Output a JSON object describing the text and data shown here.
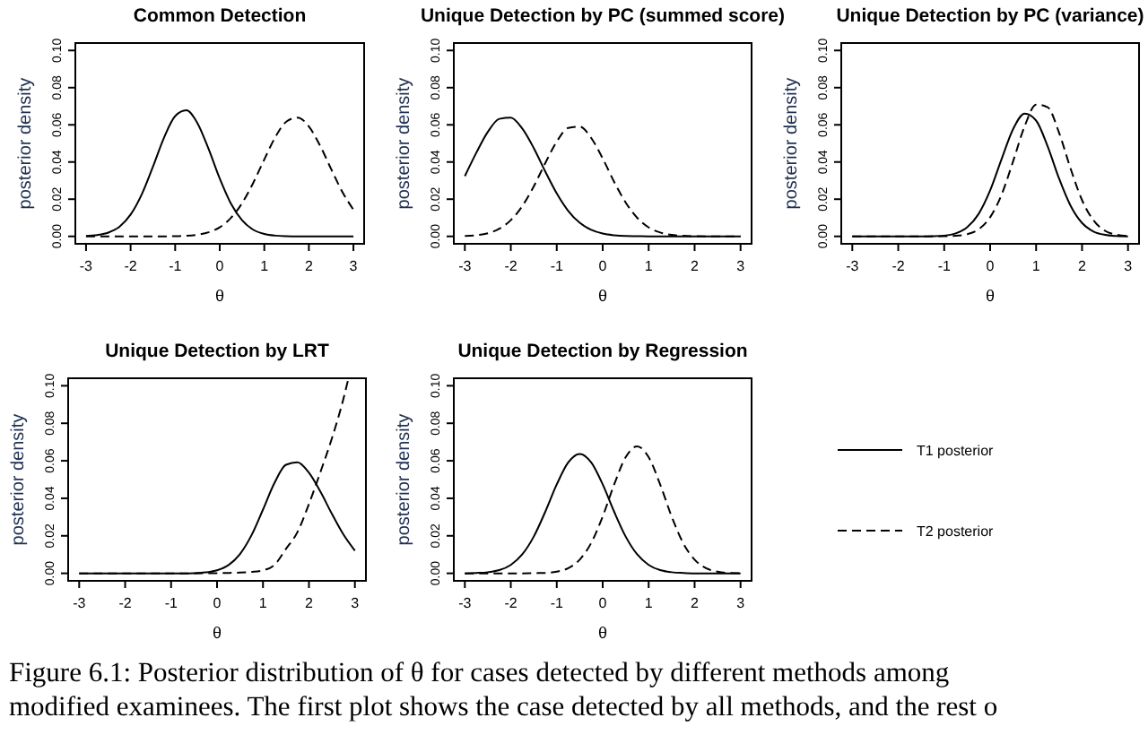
{
  "chart_data": [
    {
      "type": "line",
      "title": "Common Detection",
      "xlabel": "θ",
      "ylabel": "posterior density",
      "xlim": [
        -3.24,
        3.24
      ],
      "xticks": [
        -3,
        -2,
        -1,
        0,
        1,
        2,
        3
      ],
      "ylim": [
        -0.004,
        0.104
      ],
      "yticks": [
        {
          "value": 0,
          "label": "0.00"
        },
        {
          "value": 0.02,
          "label": "0.02"
        },
        {
          "value": 0.04,
          "label": "0.04"
        },
        {
          "value": 0.06,
          "label": "0.06"
        },
        {
          "value": 0.08,
          "label": "0.08"
        },
        {
          "value": 0.1,
          "label": "0.10"
        }
      ],
      "x": [
        -3,
        -2.75,
        -2.5,
        -2.25,
        -2,
        -1.75,
        -1.5,
        -1.25,
        -1,
        -0.75,
        -0.5,
        -0.25,
        0,
        0.25,
        0.5,
        0.75,
        1,
        1.25,
        1.5,
        1.75,
        2,
        2.25,
        2.5,
        2.75,
        3
      ],
      "series": [
        {
          "color": "#000000",
          "line_style": "solid",
          "values": [
            0.0002,
            0.0007,
            0.002,
            0.0052,
            0.0117,
            0.0226,
            0.0374,
            0.0531,
            0.0647,
            0.0678,
            0.0609,
            0.047,
            0.0311,
            0.0177,
            0.0087,
            0.0036,
            0.0013,
            0.0004,
            0.0001,
            0,
            0,
            0,
            0,
            0,
            0
          ]
        },
        {
          "color": "#000000",
          "line_style": "dashed",
          "values": [
            0,
            0,
            0,
            0,
            0,
            0,
            0,
            0,
            0.0001,
            0.0003,
            0.0009,
            0.0022,
            0.0049,
            0.0099,
            0.0178,
            0.0287,
            0.0414,
            0.0535,
            0.0618,
            0.0639,
            0.0591,
            0.0489,
            0.0362,
            0.024,
            0.0143
          ]
        }
      ]
    },
    {
      "type": "line",
      "title": "Unique Detection by PC (summed score)",
      "xlabel": "θ",
      "ylabel": "posterior density",
      "xlim": [
        -3.24,
        3.24
      ],
      "xticks": [
        -3,
        -2,
        -1,
        0,
        1,
        2,
        3
      ],
      "ylim": [
        -0.004,
        0.104
      ],
      "yticks": [
        {
          "value": 0,
          "label": "0.00"
        },
        {
          "value": 0.02,
          "label": "0.02"
        },
        {
          "value": 0.04,
          "label": "0.04"
        },
        {
          "value": 0.06,
          "label": "0.06"
        },
        {
          "value": 0.08,
          "label": "0.08"
        },
        {
          "value": 0.1,
          "label": "0.10"
        }
      ],
      "x": [
        -3,
        -2.75,
        -2.5,
        -2.25,
        -2,
        -1.75,
        -1.5,
        -1.25,
        -1,
        -0.75,
        -0.5,
        -0.25,
        0,
        0.25,
        0.5,
        0.75,
        1,
        1.25,
        1.5,
        1.75,
        2,
        2.25,
        2.5,
        2.75,
        3
      ],
      "series": [
        {
          "color": "#000000",
          "line_style": "solid",
          "values": [
            0.0324,
            0.045,
            0.0562,
            0.0632,
            0.0639,
            0.058,
            0.0475,
            0.0349,
            0.0231,
            0.0137,
            0.0073,
            0.0035,
            0.0015,
            0.0006,
            0.0002,
            0.0001,
            0,
            0,
            0,
            0,
            0,
            0,
            0,
            0,
            0
          ]
        },
        {
          "color": "#000000",
          "line_style": "dashed",
          "values": [
            0.0002,
            0.0006,
            0.0017,
            0.0041,
            0.0087,
            0.0163,
            0.0269,
            0.0394,
            0.051,
            0.0583,
            0.059,
            0.0529,
            0.0419,
            0.0293,
            0.0182,
            0.01,
            0.0048,
            0.0021,
            0.0008,
            0.0003,
            0.0001,
            0,
            0,
            0,
            0
          ]
        }
      ]
    },
    {
      "type": "line",
      "title": "Unique Detection by PC (variance)",
      "xlabel": "θ",
      "ylabel": "posterior density",
      "xlim": [
        -3.24,
        3.24
      ],
      "xticks": [
        -3,
        -2,
        -1,
        0,
        1,
        2,
        3
      ],
      "ylim": [
        -0.004,
        0.104
      ],
      "yticks": [
        {
          "value": 0,
          "label": "0.00"
        },
        {
          "value": 0.02,
          "label": "0.02"
        },
        {
          "value": 0.04,
          "label": "0.04"
        },
        {
          "value": 0.06,
          "label": "0.06"
        },
        {
          "value": 0.08,
          "label": "0.08"
        },
        {
          "value": 0.1,
          "label": "0.10"
        }
      ],
      "x": [
        -3,
        -2.75,
        -2.5,
        -2.25,
        -2,
        -1.75,
        -1.5,
        -1.25,
        -1,
        -0.75,
        -0.5,
        -0.25,
        0,
        0.25,
        0.5,
        0.75,
        1,
        1.25,
        1.5,
        1.75,
        2,
        2.25,
        2.5,
        2.75,
        3
      ],
      "series": [
        {
          "color": "#000000",
          "line_style": "solid",
          "values": [
            0,
            0,
            0,
            0,
            0,
            0,
            0,
            0.0001,
            0.0004,
            0.0016,
            0.0049,
            0.0121,
            0.0247,
            0.0416,
            0.0577,
            0.066,
            0.0623,
            0.0485,
            0.0311,
            0.0165,
            0.0072,
            0.0026,
            0.0008,
            0.0002,
            0
          ]
        },
        {
          "color": "#000000",
          "line_style": "dashed",
          "values": [
            0,
            0,
            0,
            0,
            0,
            0,
            0,
            0,
            0.0001,
            0.0003,
            0.0012,
            0.0038,
            0.0103,
            0.0225,
            0.0404,
            0.0592,
            0.0709,
            0.0695,
            0.0557,
            0.0365,
            0.0195,
            0.0086,
            0.003,
            0.0009,
            0.0002
          ]
        }
      ]
    },
    {
      "type": "line",
      "title": "Unique Detection by LRT",
      "xlabel": "θ",
      "ylabel": "posterior density",
      "xlim": [
        -3.24,
        3.24
      ],
      "xticks": [
        -3,
        -2,
        -1,
        0,
        1,
        2,
        3
      ],
      "ylim": [
        -0.004,
        0.104
      ],
      "yticks": [
        {
          "value": 0,
          "label": "0.00"
        },
        {
          "value": 0.02,
          "label": "0.02"
        },
        {
          "value": 0.04,
          "label": "0.04"
        },
        {
          "value": 0.06,
          "label": "0.06"
        },
        {
          "value": 0.08,
          "label": "0.08"
        },
        {
          "value": 0.1,
          "label": "0.10"
        }
      ],
      "x": [
        -3,
        -2.75,
        -2.5,
        -2.25,
        -2,
        -1.75,
        -1.5,
        -1.25,
        -1,
        -0.75,
        -0.5,
        -0.25,
        0,
        0.25,
        0.5,
        0.75,
        1,
        1.25,
        1.5,
        1.75,
        2,
        2.25,
        2.5,
        2.75,
        3
      ],
      "series": [
        {
          "color": "#000000",
          "line_style": "solid",
          "values": [
            0,
            0,
            0,
            0,
            0,
            0,
            0,
            0,
            0,
            0,
            0.0001,
            0.0005,
            0.0016,
            0.0044,
            0.0103,
            0.0203,
            0.034,
            0.0482,
            0.0579,
            0.0592,
            0.0536,
            0.0435,
            0.0317,
            0.0207,
            0.0121
          ]
        },
        {
          "color": "#000000",
          "line_style": "dashed",
          "x": [
            -3,
            -2.5,
            -2,
            -1.5,
            -1,
            -0.5,
            0,
            0.25,
            0.5,
            0.75,
            1,
            1.25,
            1.5,
            1.75,
            2,
            2.25,
            2.5,
            2.75,
            2.85
          ],
          "values": [
            0,
            0,
            0,
            0,
            0,
            0,
            0.0001,
            0.0002,
            0.0004,
            0.0008,
            0.0016,
            0.0045,
            0.013,
            0.022,
            0.037,
            0.054,
            0.072,
            0.093,
            0.103
          ]
        }
      ]
    },
    {
      "type": "line",
      "title": "Unique Detection by Regression",
      "xlabel": "θ",
      "ylabel": "posterior density",
      "xlim": [
        -3.24,
        3.24
      ],
      "xticks": [
        -3,
        -2,
        -1,
        0,
        1,
        2,
        3
      ],
      "ylim": [
        -0.004,
        0.104
      ],
      "yticks": [
        {
          "value": 0,
          "label": "0.00"
        },
        {
          "value": 0.02,
          "label": "0.02"
        },
        {
          "value": 0.04,
          "label": "0.04"
        },
        {
          "value": 0.06,
          "label": "0.06"
        },
        {
          "value": 0.08,
          "label": "0.08"
        },
        {
          "value": 0.1,
          "label": "0.10"
        }
      ],
      "x": [
        -3,
        -2.75,
        -2.5,
        -2.25,
        -2,
        -1.75,
        -1.5,
        -1.25,
        -1,
        -0.75,
        -0.5,
        -0.25,
        0,
        0.25,
        0.5,
        0.75,
        1,
        1.25,
        1.5,
        1.75,
        2,
        2.25,
        2.5,
        2.75,
        3
      ],
      "legend": "right",
      "annotations": [
        "Figure 6.1: Posterior distribution of θ for cases detected by different methods among",
        "modified examinees. The first plot shows the case detected by all methods, and the rest o"
      ],
      "series": [
        {
          "name": "T1 posterior",
          "color": "#000000",
          "line_style": "solid",
          "values": [
            0,
            0.0002,
            0.0006,
            0.0017,
            0.0045,
            0.0101,
            0.0196,
            0.0328,
            0.0474,
            0.0591,
            0.0636,
            0.0591,
            0.0474,
            0.0328,
            0.0196,
            0.0101,
            0.0045,
            0.0017,
            0.0006,
            0.0002,
            0,
            0,
            0,
            0,
            0
          ]
        },
        {
          "name": "T2 posterior",
          "color": "#000000",
          "line_style": "dashed",
          "values": [
            0,
            0,
            0,
            0,
            0,
            0,
            0.0001,
            0.0002,
            0.0009,
            0.0027,
            0.0073,
            0.0162,
            0.0303,
            0.0474,
            0.0619,
            0.0677,
            0.0619,
            0.0474,
            0.0303,
            0.0162,
            0.0073,
            0.0027,
            0.0009,
            0.0002,
            0.0001
          ]
        }
      ]
    }
  ]
}
